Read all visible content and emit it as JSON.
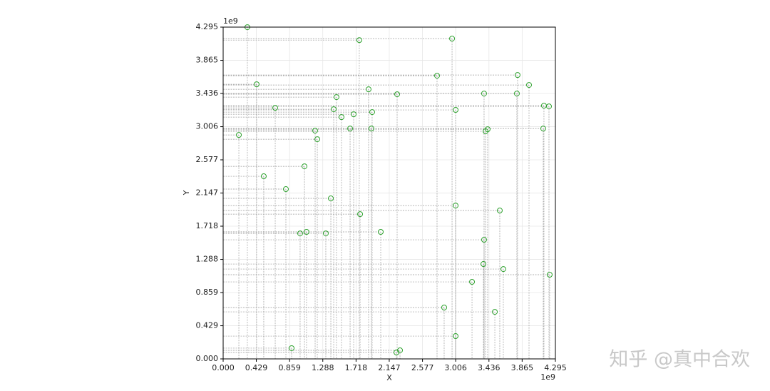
{
  "chart_data": {
    "type": "scatter",
    "xlabel": "X",
    "ylabel": "Y",
    "x_offset_label": "1e9",
    "y_offset_label": "1e9",
    "color": "#2ca02c",
    "grid": true,
    "drop_lines": true,
    "xlim": [
      0,
      4.295
    ],
    "ylim": [
      0,
      4.295
    ],
    "xticks": [
      {
        "value": 0,
        "label": "0.000"
      },
      0.429,
      0.859,
      1.288,
      1.718,
      2.147,
      2.577,
      3.006,
      3.436,
      3.865,
      4.295
    ],
    "yticks": [
      {
        "value": 0,
        "label": "0.000"
      },
      0.429,
      0.859,
      1.288,
      1.718,
      2.147,
      2.577,
      3.006,
      3.436,
      3.865,
      4.295
    ],
    "x": [
      0.313,
      1.76,
      2.959,
      2.765,
      3.806,
      3.954,
      0.433,
      1.88,
      1.465,
      2.249,
      3.373,
      3.797,
      0.673,
      1.429,
      4.147,
      4.212,
      3.005,
      1.687,
      1.53,
      1.926,
      1.641,
      1.917,
      1.189,
      3.419,
      3.392,
      4.138,
      0.203,
      1.217,
      1.051,
      0.525,
      0.811,
      1.392,
      3.005,
      3.576,
      1.77,
      2.037,
      0.995,
      1.078,
      1.327,
      3.373,
      3.364,
      3.622,
      4.221,
      3.217,
      2.857,
      3.512,
      3.005,
      0.885,
      2.24,
      2.286
    ],
    "values": [
      4.294,
      4.127,
      4.146,
      3.666,
      3.675,
      3.546,
      3.555,
      3.49,
      3.389,
      3.426,
      3.435,
      3.435,
      3.25,
      3.232,
      3.278,
      3.269,
      3.223,
      3.167,
      3.13,
      3.195,
      2.982,
      2.982,
      2.955,
      2.973,
      2.946,
      2.982,
      2.899,
      2.844,
      2.493,
      2.364,
      2.198,
      2.078,
      1.985,
      1.921,
      1.874,
      1.644,
      1.625,
      1.644,
      1.625,
      1.542,
      1.228,
      1.163,
      1.09,
      0.997,
      0.665,
      0.609,
      0.295,
      0.139,
      0.083,
      0.111
    ]
  },
  "watermark": "知乎 @真中合欢"
}
